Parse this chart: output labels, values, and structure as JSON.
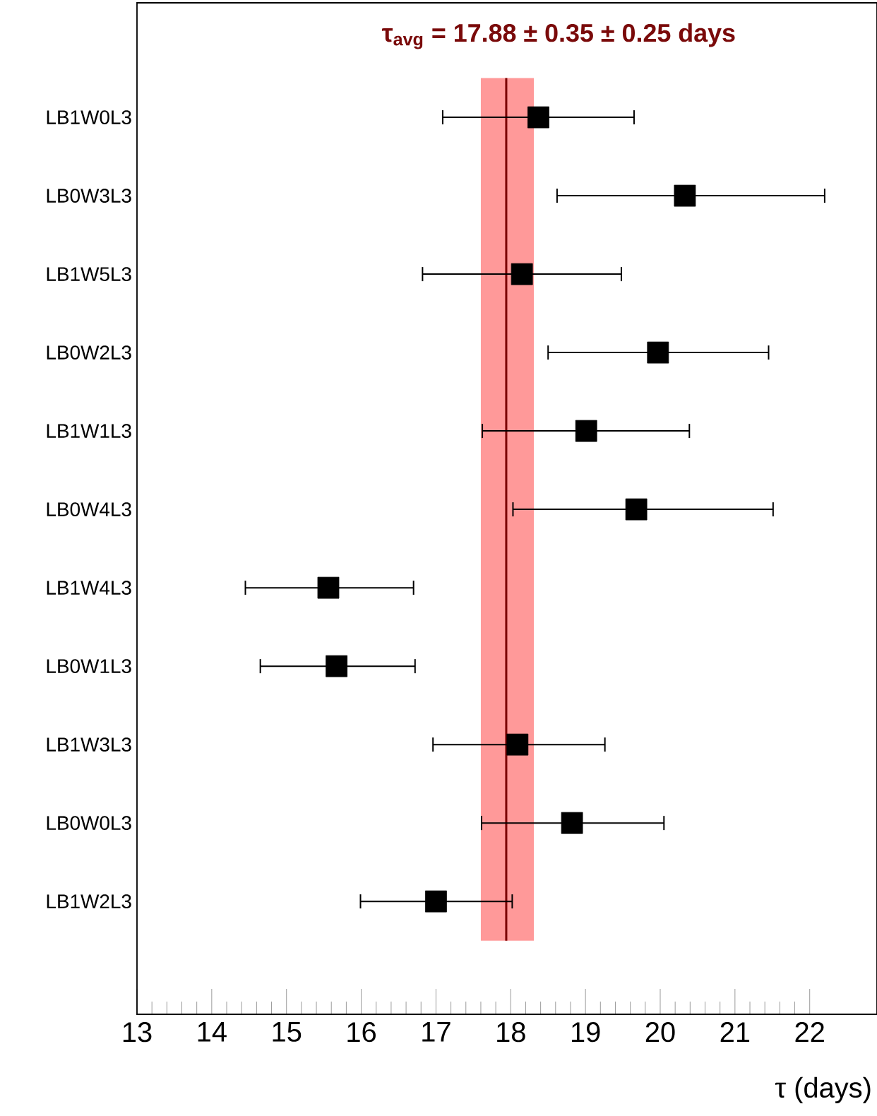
{
  "chart_data": {
    "type": "scatter",
    "orientation": "horizontal",
    "title": "τ$_{avg}$ = **17.88 ± 0.35 ± 0.25 days**",
    "xlabel": "τ (days)",
    "categories": [
      "LB1W0L3",
      "LB0W3L3",
      "LB1W5L3",
      "LB0W2L3",
      "LB1W1L3",
      "LB0W4L3",
      "LB1W4L3",
      "LB0W1L3",
      "LB1W3L3",
      "LB0W0L3",
      "LB1W2L3"
    ],
    "series": [
      {
        "color": "#000000",
        "values": [
          18.37,
          20.33,
          18.15,
          19.97,
          19.01,
          19.68,
          15.56,
          15.67,
          18.09,
          18.82,
          17.0
        ],
        "errors": [
          [
            17.09,
            19.65
          ],
          [
            18.62,
            22.2
          ],
          [
            16.82,
            19.48
          ],
          [
            18.5,
            21.45
          ],
          [
            17.62,
            20.39
          ],
          [
            18.03,
            21.51
          ],
          [
            14.45,
            16.7
          ],
          [
            14.65,
            16.72
          ],
          [
            16.96,
            19.26
          ],
          [
            17.61,
            20.05
          ],
          [
            15.99,
            18.02
          ]
        ]
      }
    ],
    "xlim": [
      13,
      22.9
    ],
    "xticks": [
      13,
      14,
      15,
      16,
      17,
      18,
      19,
      20,
      21,
      22
    ],
    "ref_lines": [
      {
        "axis": "x",
        "value": 17.94,
        "color": "#7a0000",
        "line_style": "solid"
      }
    ],
    "bands": [
      {
        "axis": "x",
        "from": 17.6,
        "to": 18.31,
        "color": "#ff9999"
      }
    ],
    "marker": "square",
    "grid": false
  }
}
